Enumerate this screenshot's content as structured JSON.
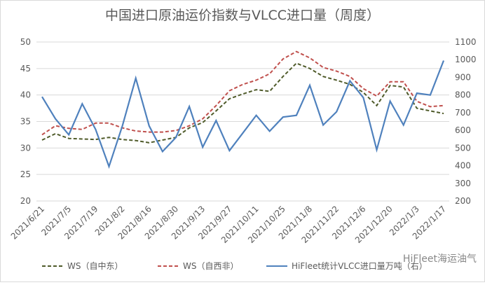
{
  "chart_data": {
    "type": "line",
    "title": "中国进口原油运价指数与VLCC进口量（周度）",
    "categories": [
      "2021/6/21",
      null,
      "2021/7/5",
      null,
      "2021/7/19",
      null,
      "2021/8/2",
      null,
      "2021/8/16",
      null,
      "2021/8/30",
      null,
      "2021/9/13",
      null,
      "2021/9/27",
      null,
      "2021/10/11",
      null,
      "2021/10/25",
      null,
      "2021/11/8",
      null,
      "2021/11/22",
      null,
      "2021/12/6",
      null,
      "2021/12/20",
      null,
      "2022/1/3",
      null,
      "2022/1/17"
    ],
    "series": [
      {
        "name": "WS（自中东）",
        "color": "#4f5b2a",
        "line_style": "dashed",
        "values": [
          31.5,
          32.7,
          31.8,
          31.7,
          31.6,
          32.0,
          31.6,
          31.4,
          31.0,
          31.5,
          32.0,
          33.8,
          34.8,
          37.0,
          39.3,
          40.2,
          41.0,
          40.7,
          43.5,
          46.0,
          45.0,
          43.5,
          42.8,
          42.0,
          40.5,
          38.0,
          41.8,
          41.5,
          37.5,
          37.0,
          36.5
        ]
      },
      {
        "name": "WS（自西非）",
        "color": "#c0504d",
        "line_style": "dashed",
        "values": [
          32.5,
          34.2,
          33.7,
          33.5,
          34.7,
          34.7,
          33.8,
          33.2,
          33.0,
          33.0,
          33.3,
          34.2,
          35.5,
          38.0,
          40.8,
          42.0,
          42.8,
          44.0,
          46.8,
          48.2,
          47.0,
          45.2,
          44.5,
          43.5,
          41.2,
          39.8,
          42.5,
          42.5,
          38.8,
          37.8,
          38.0
        ]
      },
      {
        "name": "HiFleet统计VLCC进口量万吨（右）",
        "color": "#4f81bd",
        "line_style": "solid",
        "axis": "y2",
        "values": [
          790,
          665,
          575,
          750,
          605,
          395,
          625,
          895,
          625,
          480,
          560,
          735,
          505,
          655,
          485,
          585,
          685,
          595,
          675,
          685,
          855,
          630,
          705,
          880,
          785,
          490,
          765,
          630,
          810,
          800,
          995
        ]
      }
    ],
    "ylim": [
      20,
      50
    ],
    "yticks": [
      20,
      25,
      30,
      35,
      40,
      45,
      50
    ],
    "y2lim": [
      200,
      1100
    ],
    "y2ticks": [
      200,
      300,
      400,
      500,
      600,
      700,
      800,
      900,
      1000,
      1100
    ],
    "grid": true,
    "legend": "bottom",
    "watermark": "HiFleet海运油气"
  }
}
